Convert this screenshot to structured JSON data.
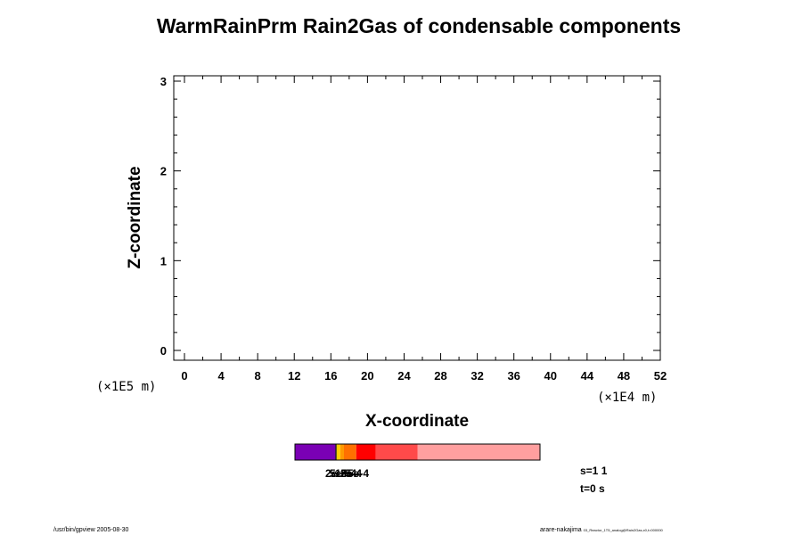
{
  "chart_data": {
    "type": "heatmap",
    "title": "WarmRainPrm Rain2Gas of condensable components",
    "xlabel": "X-coordinate",
    "ylabel": "Z-coordinate",
    "x_unit": "(×1E4 m)",
    "y_unit": "(×1E5 m)",
    "xlim": [
      0,
      52
    ],
    "ylim": [
      0,
      3
    ],
    "x_ticks": [
      "0",
      "4",
      "8",
      "12",
      "16",
      "20",
      "24",
      "28",
      "32",
      "36",
      "40",
      "44",
      "48",
      "52"
    ],
    "y_ticks": [
      "0",
      "1",
      "2",
      "3"
    ],
    "colorbar": {
      "segments": [
        {
          "color": "#7a00b4",
          "from": 0.0,
          "to": 0.165
        },
        {
          "color": "#000000",
          "from": 0.165,
          "to": 0.17
        },
        {
          "color": "#ffcc00",
          "from": 0.17,
          "to": 0.185
        },
        {
          "color": "#ff9900",
          "from": 0.185,
          "to": 0.2
        },
        {
          "color": "#ff7000",
          "from": 0.2,
          "to": 0.25
        },
        {
          "color": "#ff0000",
          "from": 0.25,
          "to": 0.33
        },
        {
          "color": "#ff4a4a",
          "from": 0.33,
          "to": 0.5
        },
        {
          "color": "#ff9f9f",
          "from": 0.5,
          "to": 1.0
        }
      ],
      "tick_labels": [
        "2e-5",
        "5e-5",
        "1e-4",
        "2e-4",
        "5e-4"
      ]
    },
    "grid": false
  },
  "info": {
    "s_label": "s=1 1",
    "t_label": "t=0 s"
  },
  "footer": {
    "left": "/usr/bin/gpview 2005-08-30",
    "right": "arare-nakajima",
    "right_small": "03_Reactor_1T5_analog@Rain2Gas,x0,t=000000"
  },
  "colors": {
    "axis": "#000000",
    "background": "#ffffff"
  }
}
